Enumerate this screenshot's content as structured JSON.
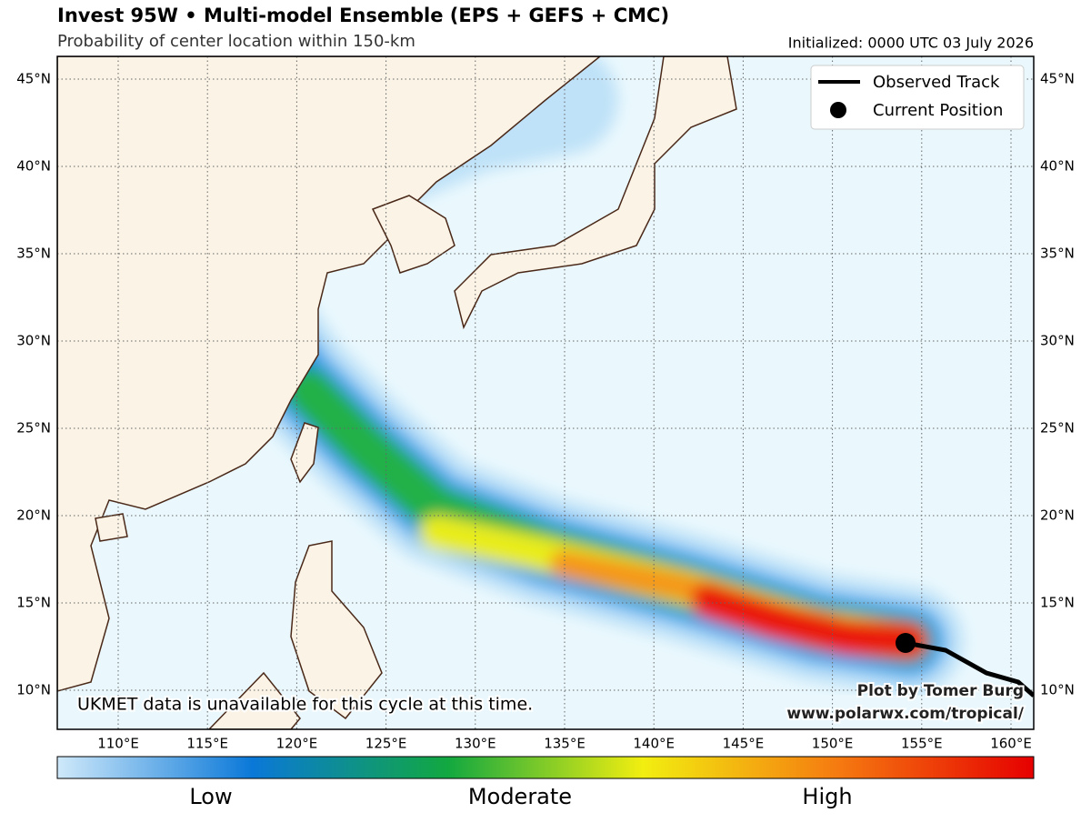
{
  "header": {
    "title": "Invest 95W • Multi-model Ensemble (EPS + GEFS + CMC)",
    "subtitle": "Probability of center location within 150-km",
    "initialized": "Initialized: 0000 UTC 03 July 2026"
  },
  "map": {
    "lat_labels": [
      "45°N",
      "40°N",
      "35°N",
      "30°N",
      "25°N",
      "20°N",
      "15°N",
      "10°N"
    ],
    "lon_labels": [
      "110°E",
      "115°E",
      "120°E",
      "125°E",
      "130°E",
      "135°E",
      "140°E",
      "145°E",
      "150°E",
      "155°E",
      "160°E"
    ]
  },
  "legend": {
    "items": [
      "Observed Track",
      "Current Position"
    ]
  },
  "annotations": {
    "notice": "UKMET data is unavailable for this cycle at this time.",
    "credit": "Plot by Tomer Burg",
    "url": "www.polarwx.com/tropical/"
  },
  "colorbar": {
    "labels": [
      "Low",
      "Moderate",
      "High"
    ]
  }
}
